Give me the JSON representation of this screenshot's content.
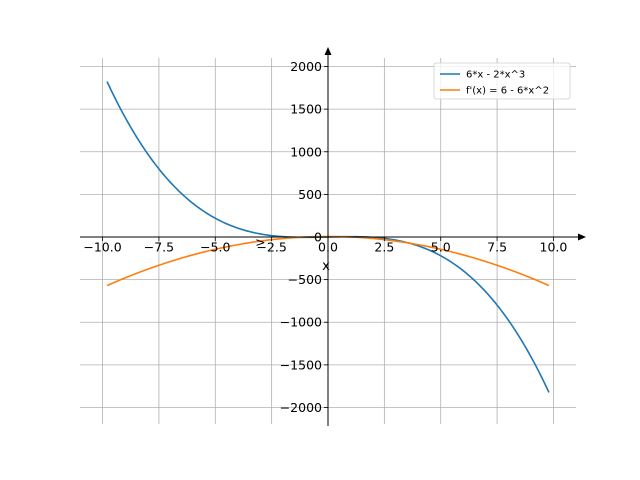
{
  "chart_data": {
    "type": "line",
    "xlabel": "x",
    "ylabel": "",
    "xlim": [
      -11,
      11
    ],
    "ylim": [
      -2100,
      2100
    ],
    "grid": true,
    "legend_position": "top-right",
    "x_ticks": [
      -10.0,
      -7.5,
      -5.0,
      -2.5,
      0.0,
      2.5,
      5.0,
      7.5,
      10.0
    ],
    "x_tick_labels": [
      "−10.0",
      "−7.5",
      "−5.0",
      "−2.5",
      "0.0",
      "2.5",
      "5.0",
      "7.5",
      "10.0"
    ],
    "y_ticks": [
      -2000,
      -1500,
      -1000,
      -500,
      0,
      500,
      1000,
      1500,
      2000
    ],
    "y_tick_labels": [
      "−2000",
      "−1500",
      "−1000",
      "−500",
      "0",
      "500",
      "1000",
      "1500",
      "2000"
    ],
    "annotations": [
      {
        "text": ">",
        "x": -3.0,
        "y": -110
      }
    ],
    "series": [
      {
        "name": "6*x - 2*x^3",
        "color": "#1f77b4",
        "x_range": [
          -9.8,
          9.8
        ],
        "expression": "6*x - 2*x^3"
      },
      {
        "name": "f'(x) = 6 - 6*x^2",
        "color": "#ff7f0e",
        "x_range": [
          -9.8,
          9.8
        ],
        "expression": "6 - 6*x^2"
      }
    ]
  }
}
